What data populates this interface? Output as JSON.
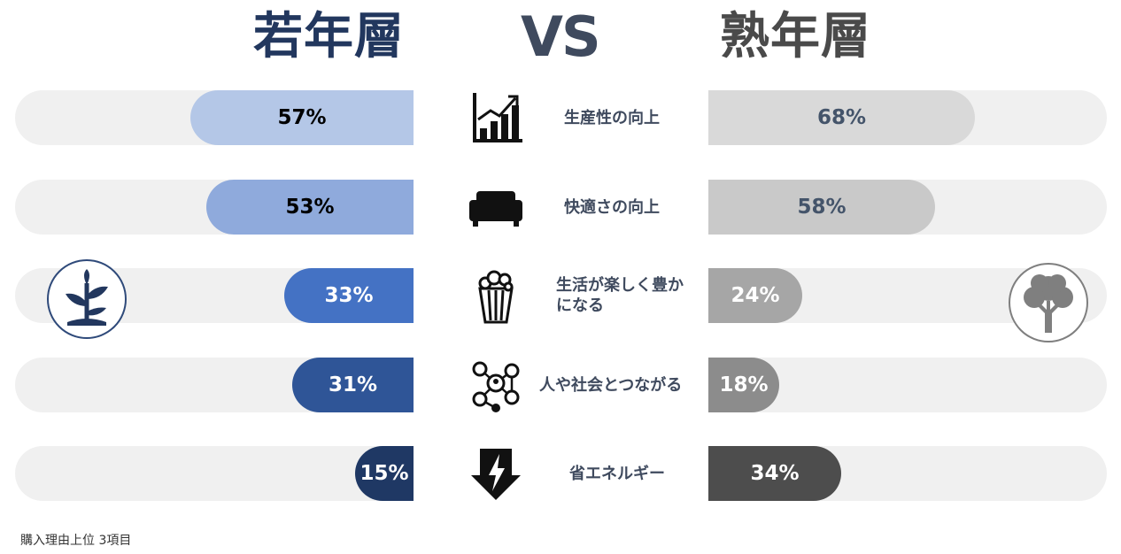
{
  "header": {
    "left_title": "若年層",
    "vs": "VS",
    "right_title": "熟年層"
  },
  "chart_data": {
    "type": "bar",
    "categories": [
      "生産性の向上",
      "快適さの向上",
      "生活が楽しく豊かになる",
      "人や社会とつながる",
      "省エネルギー"
    ],
    "series": [
      {
        "name": "若年層",
        "values": [
          57,
          53,
          33,
          31,
          15
        ]
      },
      {
        "name": "熟年層",
        "values": [
          68,
          58,
          24,
          18,
          34
        ]
      }
    ],
    "value_labels_left": [
      "57%",
      "53%",
      "33%",
      "31%",
      "15%"
    ],
    "value_labels_right": [
      "68%",
      "58%",
      "24%",
      "18%",
      "34%"
    ],
    "category_display": [
      [
        "生産性の向上"
      ],
      [
        "快適さの向上"
      ],
      [
        "生活が楽しく豊か",
        "になる"
      ],
      [
        "人や社会とつながる"
      ],
      [
        "省エネルギー"
      ]
    ],
    "ylim": [
      0,
      100
    ],
    "colors_left": [
      "#b4c7e7",
      "#8faadc",
      "#4472c4",
      "#2f5597",
      "#1f3864"
    ],
    "colors_right": [
      "#d9d9d9",
      "#c9c9c9",
      "#a6a6a6",
      "#8c8c8c",
      "#4d4d4d"
    ],
    "label_colors_left": [
      "#000000",
      "#000000",
      "#ffffff",
      "#ffffff",
      "#ffffff"
    ],
    "label_colors_right": [
      "#44546a",
      "#44546a",
      "#ffffff",
      "#ffffff",
      "#ffffff"
    ],
    "category_icons": [
      "growth-chart-icon",
      "sofa-icon",
      "popcorn-icon",
      "network-icon",
      "energy-icon"
    ]
  },
  "icons": {
    "left_group": "sprout-icon",
    "right_group": "tree-icon"
  },
  "footnote": "購入理由上位 3項目"
}
